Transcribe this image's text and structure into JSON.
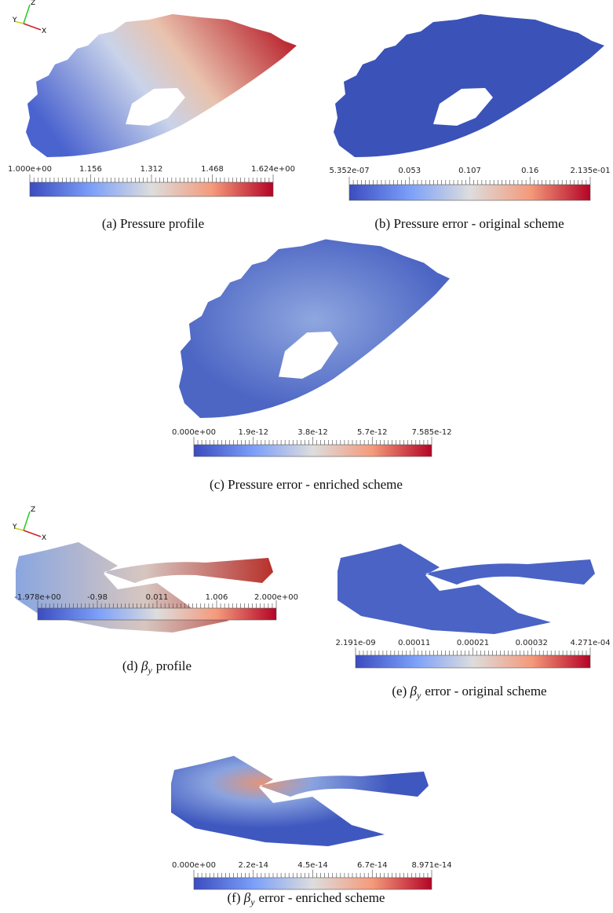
{
  "axes_icons": [
    {
      "z": "Z",
      "y": "Y",
      "x": "X"
    },
    {
      "z": "Z",
      "y": "Y",
      "x": "X"
    }
  ],
  "panels": [
    {
      "colorbar": [
        "1.000e+00",
        "1.156",
        "1.312",
        "1.468",
        "1.624e+00"
      ],
      "caption": {
        "tag": "(a)",
        "text": "Pressure profile"
      }
    },
    {
      "colorbar": [
        "5.352e-07",
        "0.053",
        "0.107",
        "0.16",
        "2.135e-01"
      ],
      "caption": {
        "tag": "(b)",
        "text": "Pressure error - original scheme"
      }
    },
    {
      "colorbar": [
        "0.000e+00",
        "1.9e-12",
        "3.8e-12",
        "5.7e-12",
        "7.585e-12"
      ],
      "caption": {
        "tag": "(c)",
        "text": "Pressure error - enriched scheme"
      }
    },
    {
      "colorbar": [
        "-1.978e+00",
        "-0.98",
        "0.011",
        "1.006",
        "2.000e+00"
      ],
      "caption": {
        "tag": "(d)",
        "symbol": "β",
        "sub": "y",
        "text": "profile"
      }
    },
    {
      "colorbar": [
        "2.191e-09",
        "0.00011",
        "0.00021",
        "0.00032",
        "4.271e-04"
      ],
      "caption": {
        "tag": "(e)",
        "symbol": "β",
        "sub": "y",
        "text": "error - original scheme"
      }
    },
    {
      "colorbar": [
        "0.000e+00",
        "2.2e-14",
        "4.5e-14",
        "6.7e-14",
        "8.971e-14"
      ],
      "caption": {
        "tag": "(f)",
        "symbol": "β",
        "sub": "y",
        "text": "error - enriched scheme"
      }
    }
  ]
}
